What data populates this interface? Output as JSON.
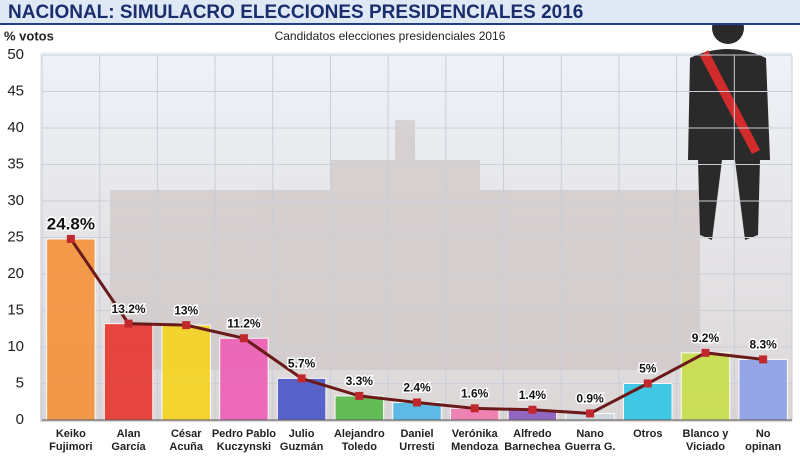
{
  "chart_data": {
    "type": "bar",
    "title": "NACIONAL: SIMULACRO ELECCIONES PRESIDENCIALES 2016",
    "subtitle": "Candidatos elecciones presidenciales 2016",
    "y_label": "% votos",
    "categories": [
      [
        "Keiko",
        "Fujimori"
      ],
      [
        "Alan",
        "García"
      ],
      [
        "César",
        "Acuña"
      ],
      [
        "Pedro Pablo",
        "Kuczynski"
      ],
      [
        "Julio",
        "Guzmán"
      ],
      [
        "Alejandro",
        "Toledo"
      ],
      [
        "Daniel",
        "Urresti"
      ],
      [
        "Verónika",
        "Mendoza"
      ],
      [
        "Alfredo",
        "Barnechea"
      ],
      [
        "Nano",
        "Guerra G."
      ],
      [
        "Otros"
      ],
      [
        "Blanco y",
        "Viciado"
      ],
      [
        "No",
        "opinan"
      ]
    ],
    "values": [
      24.8,
      13.2,
      13,
      11.2,
      5.7,
      3.3,
      2.4,
      1.6,
      1.4,
      0.9,
      5,
      9.2,
      8.3
    ],
    "value_labels": [
      "24.8%",
      "13.2%",
      "13%",
      "11.2%",
      "5.7%",
      "3.3%",
      "2.4%",
      "1.6%",
      "1.4%",
      "0.9%",
      "5%",
      "9.2%",
      "8.3%"
    ],
    "colors": [
      "#f5923a",
      "#e8362f",
      "#f6d41f",
      "#ee5fb5",
      "#4a57c8",
      "#56b948",
      "#4fb8e6",
      "#f07ab0",
      "#8a5bc0",
      "#cfd8de",
      "#2fc6e6",
      "#c8e04a",
      "#8fa0e8"
    ],
    "line_color": "#6b1a1a",
    "ylim": [
      0,
      50
    ],
    "yticks": [
      0,
      5,
      10,
      15,
      20,
      25,
      30,
      35,
      40,
      45,
      50
    ],
    "grid": true
  }
}
